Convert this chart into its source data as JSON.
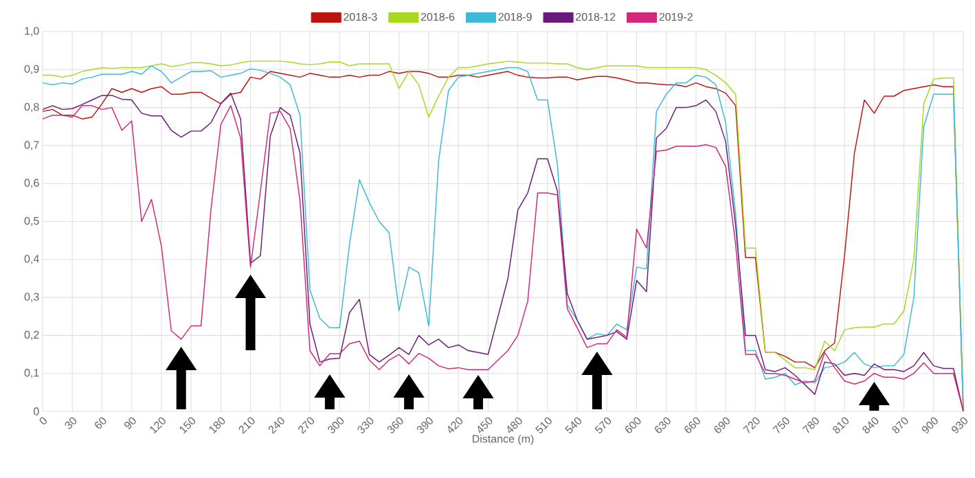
{
  "chart_data": {
    "type": "line",
    "xlabel": "Distance (m)",
    "x": [
      0,
      10,
      20,
      30,
      40,
      50,
      60,
      70,
      80,
      90,
      100,
      110,
      120,
      130,
      140,
      150,
      160,
      170,
      180,
      190,
      200,
      210,
      220,
      230,
      240,
      250,
      260,
      270,
      280,
      290,
      300,
      310,
      320,
      330,
      340,
      350,
      360,
      370,
      380,
      390,
      400,
      410,
      420,
      430,
      440,
      450,
      460,
      470,
      480,
      490,
      500,
      510,
      520,
      530,
      540,
      550,
      560,
      570,
      580,
      590,
      600,
      610,
      620,
      630,
      640,
      650,
      660,
      670,
      680,
      690,
      700,
      710,
      720,
      730,
      740,
      750,
      760,
      770,
      780,
      790,
      800,
      810,
      820,
      830,
      840,
      850,
      860,
      870,
      880,
      890,
      900,
      910,
      920,
      930
    ],
    "series": [
      {
        "name": "2018-3",
        "color": "#c0120c",
        "values": [
          0.79,
          0.795,
          0.78,
          0.78,
          0.77,
          0.775,
          0.81,
          0.85,
          0.84,
          0.85,
          0.84,
          0.85,
          0.855,
          0.835,
          0.835,
          0.84,
          0.84,
          0.825,
          0.81,
          0.835,
          0.84,
          0.88,
          0.875,
          0.895,
          0.89,
          0.885,
          0.88,
          0.89,
          0.885,
          0.88,
          0.88,
          0.885,
          0.88,
          0.885,
          0.885,
          0.895,
          0.89,
          0.895,
          0.895,
          0.89,
          0.88,
          0.88,
          0.885,
          0.885,
          0.88,
          0.885,
          0.89,
          0.895,
          0.885,
          0.88,
          0.878,
          0.878,
          0.88,
          0.88,
          0.873,
          0.878,
          0.882,
          0.882,
          0.878,
          0.872,
          0.865,
          0.865,
          0.862,
          0.86,
          0.86,
          0.855,
          0.865,
          0.855,
          0.85,
          0.838,
          0.805,
          0.405,
          0.405,
          0.155,
          0.155,
          0.145,
          0.13,
          0.13,
          0.115,
          0.16,
          0.18,
          0.41,
          0.68,
          0.82,
          0.785,
          0.83,
          0.83,
          0.845,
          0.85,
          0.855,
          0.86,
          0.855,
          0.855,
          0.0
        ]
      },
      {
        "name": "2018-6",
        "color": "#a6d91c",
        "values": [
          0.885,
          0.885,
          0.88,
          0.885,
          0.895,
          0.9,
          0.905,
          0.903,
          0.905,
          0.905,
          0.905,
          0.91,
          0.915,
          0.908,
          0.912,
          0.918,
          0.918,
          0.915,
          0.91,
          0.912,
          0.918,
          0.922,
          0.922,
          0.922,
          0.922,
          0.92,
          0.915,
          0.913,
          0.915,
          0.92,
          0.92,
          0.91,
          0.915,
          0.915,
          0.915,
          0.915,
          0.85,
          0.895,
          0.86,
          0.775,
          0.83,
          0.88,
          0.905,
          0.905,
          0.91,
          0.915,
          0.918,
          0.922,
          0.92,
          0.917,
          0.917,
          0.917,
          0.915,
          0.915,
          0.905,
          0.9,
          0.905,
          0.91,
          0.91,
          0.91,
          0.91,
          0.905,
          0.905,
          0.905,
          0.905,
          0.905,
          0.905,
          0.9,
          0.885,
          0.865,
          0.835,
          0.43,
          0.43,
          0.155,
          0.155,
          0.135,
          0.115,
          0.115,
          0.11,
          0.185,
          0.16,
          0.215,
          0.22,
          0.222,
          0.222,
          0.23,
          0.23,
          0.265,
          0.4,
          0.81,
          0.875,
          0.878,
          0.878,
          0.0
        ]
      },
      {
        "name": "2018-9",
        "color": "#3cb9d9",
        "values": [
          0.865,
          0.86,
          0.865,
          0.862,
          0.875,
          0.88,
          0.888,
          0.888,
          0.888,
          0.895,
          0.888,
          0.91,
          0.895,
          0.865,
          0.88,
          0.895,
          0.895,
          0.897,
          0.88,
          0.885,
          0.89,
          0.902,
          0.898,
          0.89,
          0.88,
          0.86,
          0.78,
          0.32,
          0.245,
          0.22,
          0.22,
          0.44,
          0.61,
          0.55,
          0.5,
          0.47,
          0.265,
          0.38,
          0.365,
          0.225,
          0.66,
          0.845,
          0.88,
          0.885,
          0.89,
          0.895,
          0.9,
          0.905,
          0.905,
          0.895,
          0.82,
          0.82,
          0.65,
          0.28,
          0.24,
          0.19,
          0.205,
          0.2,
          0.23,
          0.215,
          0.38,
          0.375,
          0.79,
          0.835,
          0.865,
          0.865,
          0.885,
          0.88,
          0.86,
          0.76,
          0.52,
          0.16,
          0.16,
          0.085,
          0.09,
          0.1,
          0.07,
          0.08,
          0.075,
          0.115,
          0.12,
          0.13,
          0.155,
          0.125,
          0.115,
          0.12,
          0.12,
          0.15,
          0.3,
          0.75,
          0.835,
          0.835,
          0.835,
          0.0
        ]
      },
      {
        "name": "2018-12",
        "color": "#6a1a7a",
        "values": [
          0.795,
          0.805,
          0.795,
          0.797,
          0.808,
          0.82,
          0.832,
          0.832,
          0.822,
          0.82,
          0.785,
          0.778,
          0.778,
          0.74,
          0.722,
          0.738,
          0.738,
          0.76,
          0.81,
          0.838,
          0.77,
          0.39,
          0.41,
          0.725,
          0.8,
          0.78,
          0.68,
          0.23,
          0.13,
          0.138,
          0.14,
          0.26,
          0.295,
          0.15,
          0.13,
          0.148,
          0.168,
          0.15,
          0.2,
          0.175,
          0.19,
          0.168,
          0.175,
          0.16,
          0.155,
          0.15,
          0.25,
          0.35,
          0.53,
          0.575,
          0.665,
          0.665,
          0.58,
          0.31,
          0.24,
          0.19,
          0.195,
          0.2,
          0.21,
          0.19,
          0.345,
          0.315,
          0.72,
          0.745,
          0.8,
          0.8,
          0.805,
          0.82,
          0.79,
          0.71,
          0.49,
          0.2,
          0.2,
          0.11,
          0.105,
          0.115,
          0.095,
          0.07,
          0.045,
          0.13,
          0.125,
          0.095,
          0.1,
          0.095,
          0.125,
          0.11,
          0.11,
          0.105,
          0.12,
          0.155,
          0.12,
          0.113,
          0.113,
          0.0
        ]
      },
      {
        "name": "2019-2",
        "color": "#d4267a",
        "values": [
          0.77,
          0.78,
          0.78,
          0.775,
          0.805,
          0.805,
          0.795,
          0.8,
          0.74,
          0.765,
          0.5,
          0.558,
          0.435,
          0.212,
          0.19,
          0.225,
          0.225,
          0.53,
          0.755,
          0.805,
          0.72,
          0.38,
          0.58,
          0.785,
          0.79,
          0.745,
          0.555,
          0.16,
          0.12,
          0.152,
          0.152,
          0.178,
          0.185,
          0.135,
          0.11,
          0.135,
          0.15,
          0.125,
          0.153,
          0.14,
          0.12,
          0.112,
          0.115,
          0.11,
          0.11,
          0.11,
          0.135,
          0.16,
          0.2,
          0.29,
          0.575,
          0.575,
          0.57,
          0.27,
          0.22,
          0.168,
          0.178,
          0.178,
          0.215,
          0.195,
          0.48,
          0.43,
          0.685,
          0.688,
          0.698,
          0.698,
          0.698,
          0.702,
          0.695,
          0.645,
          0.44,
          0.15,
          0.15,
          0.1,
          0.1,
          0.095,
          0.085,
          0.075,
          0.08,
          0.155,
          0.115,
          0.08,
          0.072,
          0.08,
          0.1,
          0.09,
          0.09,
          0.085,
          0.1,
          0.128,
          0.1,
          0.1,
          0.1,
          0.0
        ]
      }
    ],
    "xlim": [
      0,
      930
    ],
    "xticks": [
      0,
      30,
      60,
      90,
      120,
      150,
      180,
      210,
      240,
      270,
      300,
      330,
      360,
      390,
      420,
      450,
      480,
      510,
      540,
      570,
      600,
      630,
      660,
      690,
      720,
      750,
      780,
      810,
      840,
      870,
      900,
      930
    ],
    "ylim": [
      0,
      1
    ],
    "yticks": [
      {
        "value": 0,
        "label": "0"
      },
      {
        "value": 0.1,
        "label": "0,1"
      },
      {
        "value": 0.2,
        "label": "0,2"
      },
      {
        "value": 0.3,
        "label": "0,3"
      },
      {
        "value": 0.4,
        "label": "0,4"
      },
      {
        "value": 0.5,
        "label": "0,5"
      },
      {
        "value": 0.6,
        "label": "0,6"
      },
      {
        "value": 0.7,
        "label": "0,7"
      },
      {
        "value": 0.8,
        "label": "0,8"
      },
      {
        "value": 0.9,
        "label": "0,9"
      },
      {
        "value": 1,
        "label": "1,0"
      }
    ],
    "grid": true,
    "legend": "top",
    "marker": "none",
    "line_style": "solid"
  }
}
